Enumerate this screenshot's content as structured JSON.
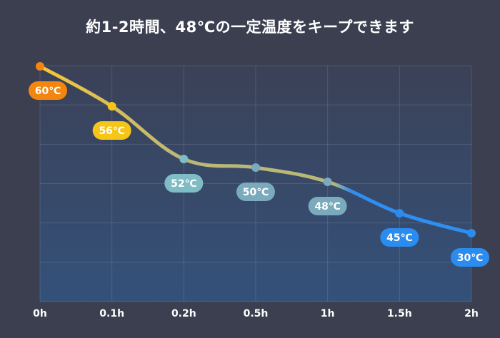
{
  "chart_data": {
    "type": "line",
    "title": "約1-2時間、48℃の一定温度をキープできます",
    "categories": [
      "0h",
      "0.1h",
      "0.2h",
      "0.5h",
      "1h",
      "1.5h",
      "2h"
    ],
    "series": [
      {
        "values": [
          60,
          56,
          52,
          50,
          48,
          45,
          30
        ],
        "point_labels": [
          "60℃",
          "56℃",
          "52℃",
          "50℃",
          "48℃",
          "45℃",
          "30℃"
        ]
      }
    ],
    "point_colors": [
      "#f3860f",
      "#f5c518",
      "#7fbcc6",
      "#7aaabc",
      "#7aaabc",
      "#2b8cf0",
      "#2b8cf0"
    ],
    "line_colors": [
      "#f6c63a",
      "#b9b877",
      "#2f8ef2"
    ],
    "grid": true
  }
}
